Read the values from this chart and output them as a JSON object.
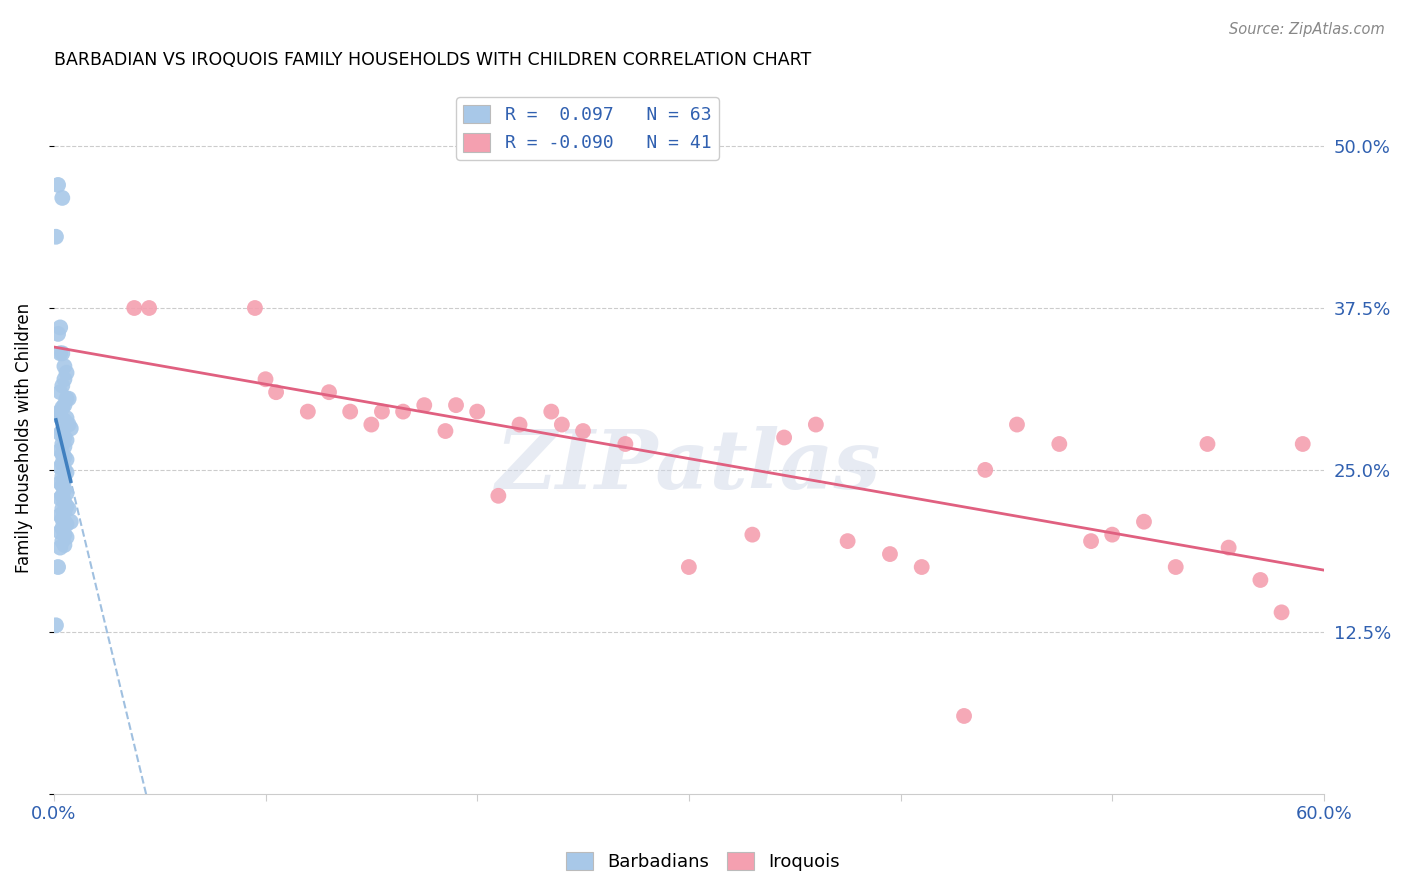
{
  "title": "BARBADIAN VS IROQUOIS FAMILY HOUSEHOLDS WITH CHILDREN CORRELATION CHART",
  "source": "Source: ZipAtlas.com",
  "ylabel": "Family Households with Children",
  "xlim": [
    0.0,
    0.6
  ],
  "ylim": [
    0.0,
    0.55
  ],
  "xticks": [
    0.0,
    0.1,
    0.2,
    0.3,
    0.4,
    0.5,
    0.6
  ],
  "xticklabels": [
    "0.0%",
    "",
    "",
    "",
    "",
    "",
    "60.0%"
  ],
  "ytick_positions": [
    0.0,
    0.125,
    0.25,
    0.375,
    0.5
  ],
  "yticklabels_right": [
    "",
    "12.5%",
    "25.0%",
    "37.5%",
    "50.0%"
  ],
  "legend_blue_label": "R =  0.097   N = 63",
  "legend_pink_label": "R = -0.090   N = 41",
  "blue_scatter_color": "#a8c8e8",
  "pink_scatter_color": "#f4a0b0",
  "blue_line_color": "#4080c0",
  "pink_line_color": "#e06080",
  "dashed_line_color": "#a0c0e0",
  "watermark": "ZIPatlas",
  "barbadians_x": [
    0.002,
    0.004,
    0.001,
    0.003,
    0.002,
    0.003,
    0.004,
    0.005,
    0.006,
    0.005,
    0.004,
    0.003,
    0.006,
    0.007,
    0.005,
    0.004,
    0.003,
    0.002,
    0.006,
    0.005,
    0.007,
    0.008,
    0.004,
    0.003,
    0.005,
    0.006,
    0.004,
    0.005,
    0.003,
    0.004,
    0.005,
    0.006,
    0.004,
    0.003,
    0.005,
    0.006,
    0.004,
    0.005,
    0.003,
    0.004,
    0.005,
    0.006,
    0.004,
    0.003,
    0.005,
    0.006,
    0.004,
    0.005,
    0.003,
    0.004,
    0.005,
    0.006,
    0.004,
    0.003,
    0.005,
    0.006,
    0.004,
    0.005,
    0.003,
    0.002,
    0.001,
    0.007,
    0.008
  ],
  "barbadians_y": [
    0.47,
    0.46,
    0.43,
    0.36,
    0.355,
    0.34,
    0.34,
    0.33,
    0.325,
    0.32,
    0.315,
    0.31,
    0.305,
    0.305,
    0.3,
    0.298,
    0.295,
    0.292,
    0.29,
    0.288,
    0.285,
    0.282,
    0.28,
    0.278,
    0.275,
    0.273,
    0.27,
    0.268,
    0.265,
    0.262,
    0.26,
    0.258,
    0.255,
    0.252,
    0.25,
    0.248,
    0.245,
    0.242,
    0.24,
    0.238,
    0.235,
    0.232,
    0.23,
    0.228,
    0.225,
    0.222,
    0.22,
    0.218,
    0.215,
    0.212,
    0.21,
    0.208,
    0.205,
    0.202,
    0.2,
    0.198,
    0.195,
    0.192,
    0.19,
    0.175,
    0.13,
    0.22,
    0.21
  ],
  "iroquois_x": [
    0.038,
    0.045,
    0.095,
    0.1,
    0.105,
    0.12,
    0.13,
    0.14,
    0.15,
    0.155,
    0.165,
    0.175,
    0.185,
    0.19,
    0.2,
    0.21,
    0.22,
    0.235,
    0.24,
    0.25,
    0.27,
    0.3,
    0.33,
    0.345,
    0.36,
    0.375,
    0.395,
    0.41,
    0.44,
    0.455,
    0.475,
    0.49,
    0.5,
    0.515,
    0.53,
    0.545,
    0.555,
    0.57,
    0.58,
    0.59,
    0.43
  ],
  "iroquois_y": [
    0.375,
    0.375,
    0.375,
    0.32,
    0.31,
    0.295,
    0.31,
    0.295,
    0.285,
    0.295,
    0.295,
    0.3,
    0.28,
    0.3,
    0.295,
    0.23,
    0.285,
    0.295,
    0.285,
    0.28,
    0.27,
    0.175,
    0.2,
    0.275,
    0.285,
    0.195,
    0.185,
    0.175,
    0.25,
    0.285,
    0.27,
    0.195,
    0.2,
    0.21,
    0.175,
    0.27,
    0.19,
    0.165,
    0.14,
    0.27,
    0.06
  ]
}
